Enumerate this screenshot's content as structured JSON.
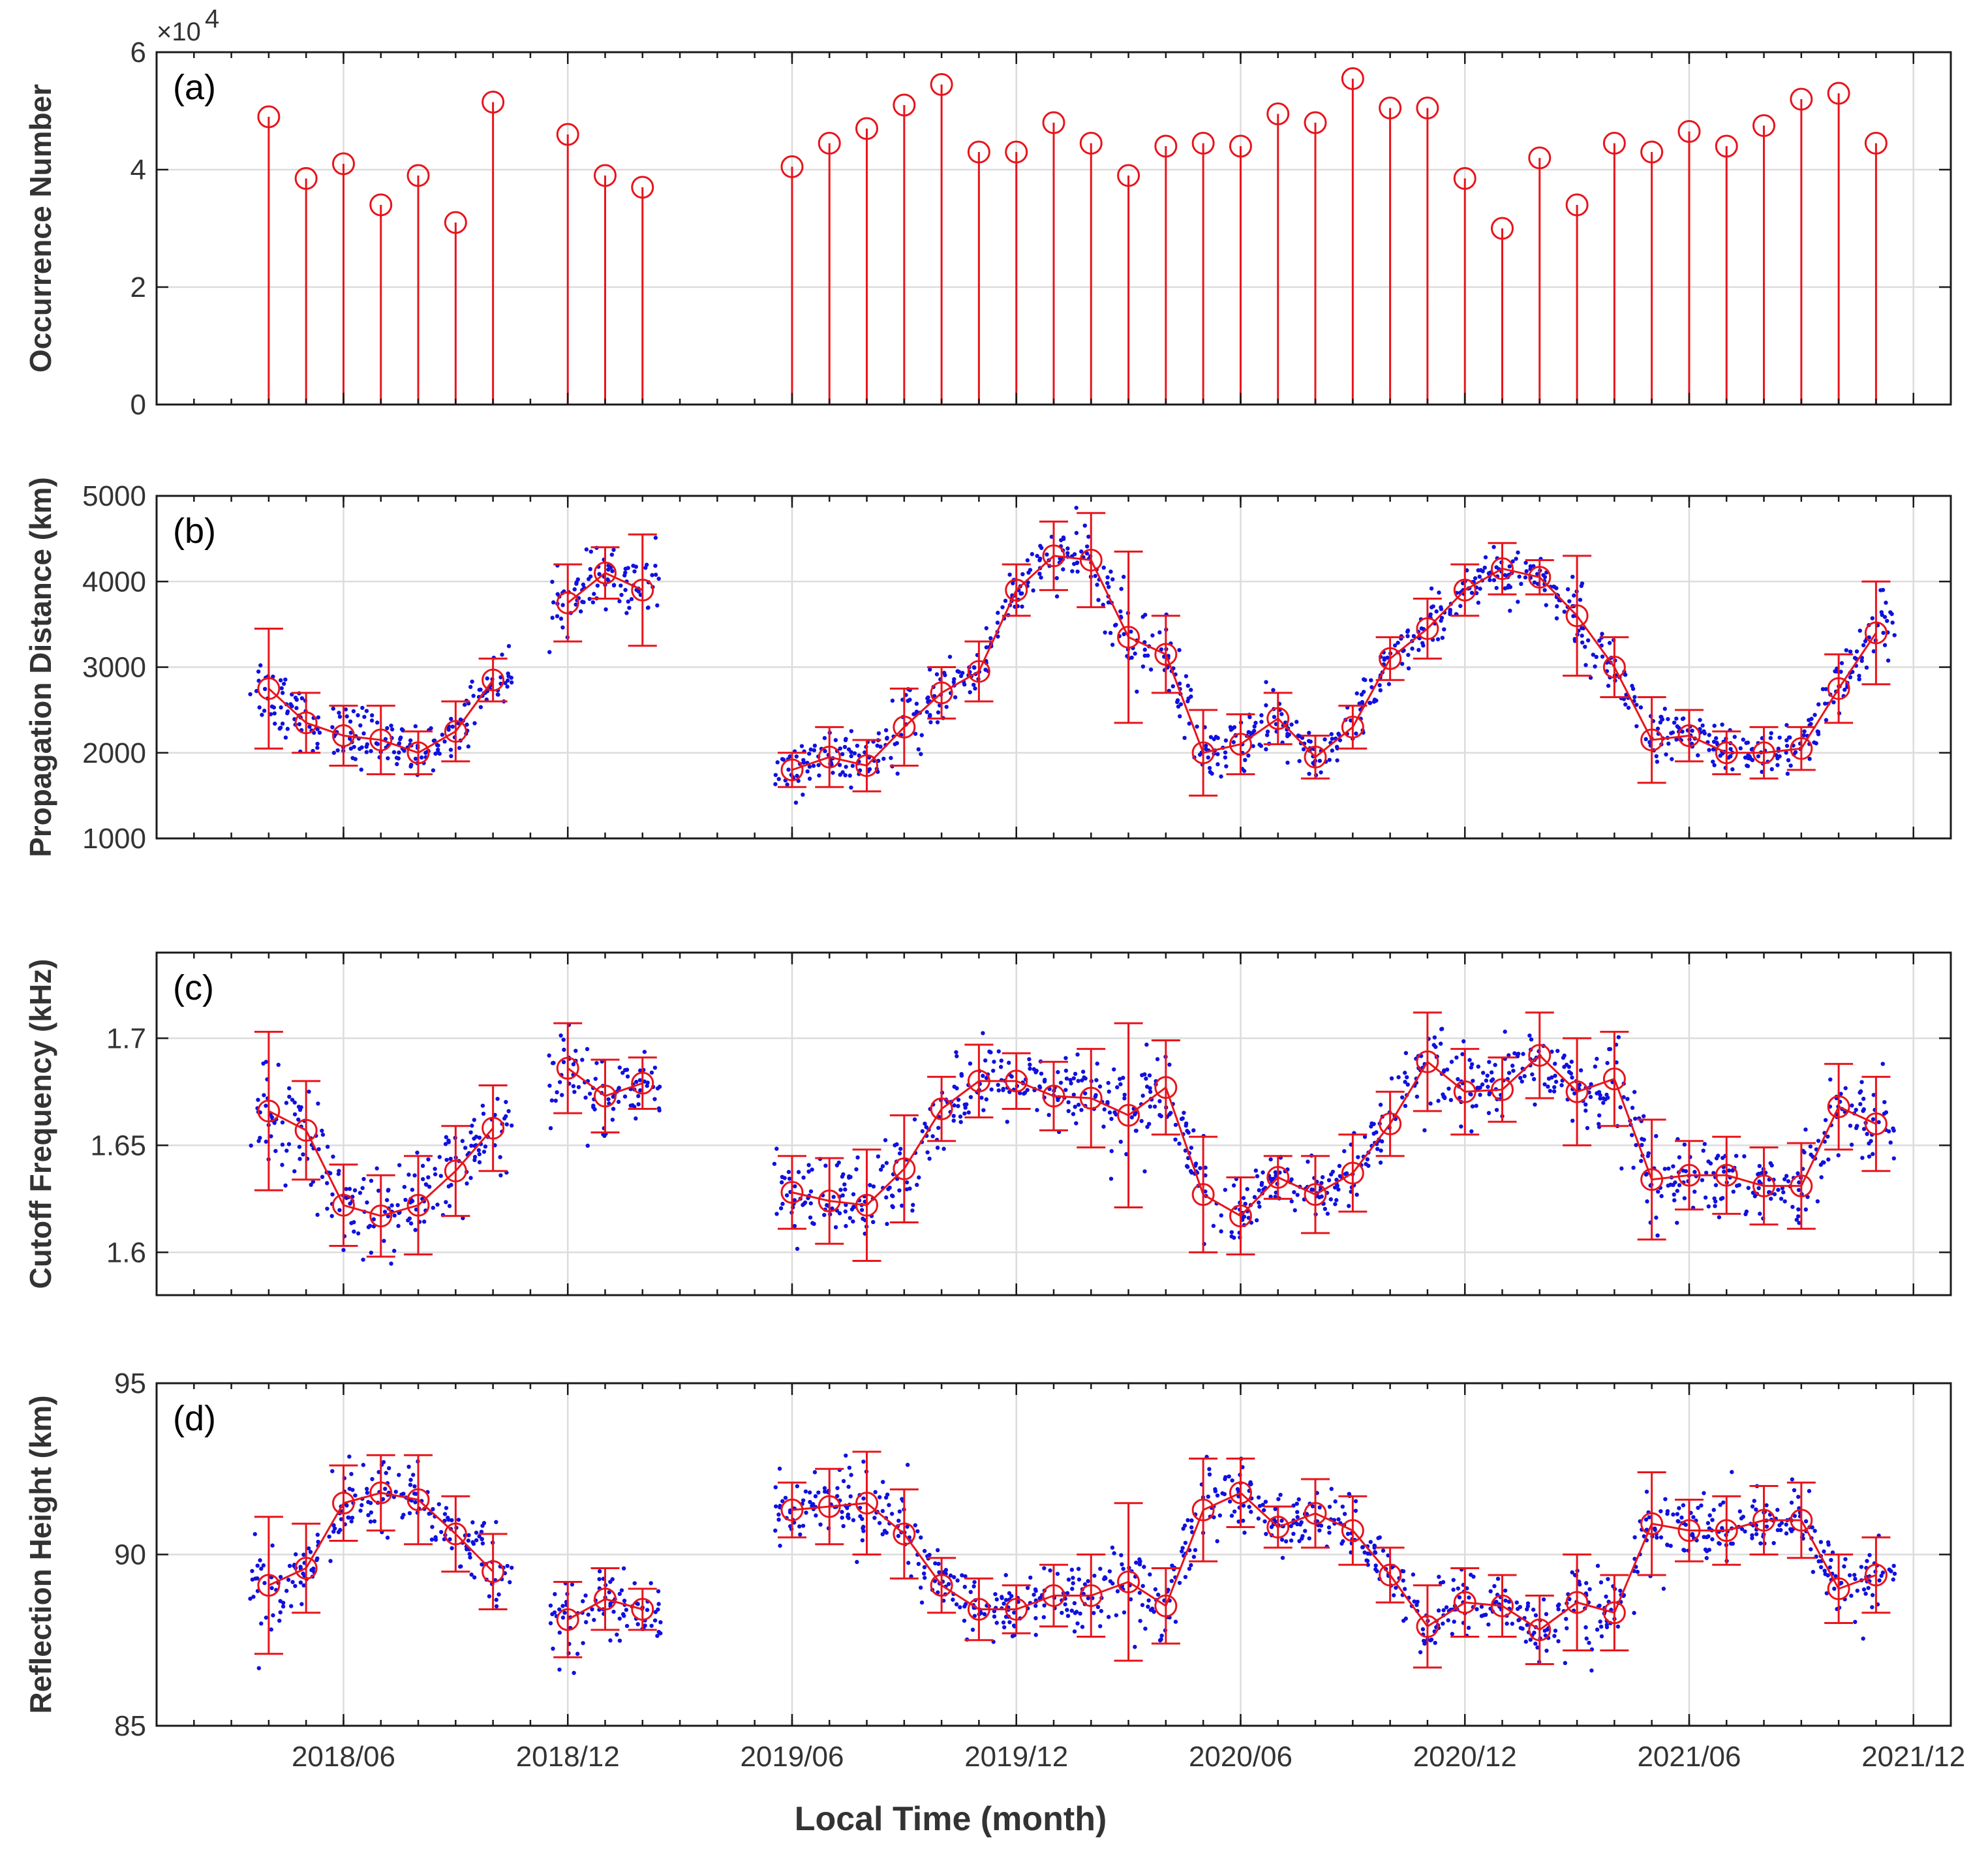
{
  "x_axis": {
    "title": "Local Time (month)",
    "range": [
      2018.0,
      2022.0
    ],
    "tick_values": [
      2018.4167,
      2018.9167,
      2019.4167,
      2019.9167,
      2020.4167,
      2020.9167,
      2021.4167,
      2021.9167
    ],
    "tick_labels": [
      "2018/06",
      "2018/12",
      "2019/06",
      "2019/12",
      "2020/06",
      "2020/12",
      "2021/06",
      "2021/12"
    ],
    "months": [
      2018.25,
      2018.3333,
      2018.4167,
      2018.5,
      2018.5833,
      2018.6667,
      2018.75,
      2018.9167,
      2019.0,
      2019.0833,
      2019.4167,
      2019.5,
      2019.5833,
      2019.6667,
      2019.75,
      2019.8333,
      2019.9167,
      2020.0,
      2020.0833,
      2020.1667,
      2020.25,
      2020.3333,
      2020.4167,
      2020.5,
      2020.5833,
      2020.6667,
      2020.75,
      2020.8333,
      2020.9167,
      2021.0,
      2021.0833,
      2021.1667,
      2021.25,
      2021.3333,
      2021.4167,
      2021.5,
      2021.5833,
      2021.6667,
      2021.75,
      2021.8333
    ]
  },
  "chart_data": [
    {
      "type": "stem",
      "panel_label": "(a)",
      "ylabel": "Occurrence Number",
      "ylim": [
        0,
        6
      ],
      "y_ticks": [
        0,
        2,
        4,
        6
      ],
      "y_tick_labels": [
        "0",
        "2",
        "4",
        "6"
      ],
      "y_multiplier": "×10",
      "y_multiplier_exp": "4",
      "values": [
        4.9,
        3.85,
        4.1,
        3.4,
        3.9,
        3.1,
        5.15,
        4.6,
        3.9,
        3.7,
        4.05,
        4.45,
        4.7,
        5.1,
        5.45,
        4.3,
        4.3,
        4.8,
        4.45,
        3.9,
        4.4,
        4.45,
        4.4,
        4.95,
        4.8,
        5.55,
        5.05,
        5.05,
        3.85,
        3.0,
        4.2,
        3.4,
        4.45,
        4.3,
        4.65,
        4.4,
        4.75,
        5.2,
        5.3,
        4.45
      ]
    },
    {
      "type": "scatter+errorbar",
      "panel_label": "(b)",
      "ylabel": "Propagation Distance (km)",
      "ylim": [
        1000,
        5000
      ],
      "y_ticks": [
        1000,
        2000,
        3000,
        4000,
        5000
      ],
      "y_tick_labels": [
        "1000",
        "2000",
        "3000",
        "4000",
        "5000"
      ],
      "means": [
        2750,
        2350,
        2200,
        2150,
        2000,
        2250,
        2850,
        3750,
        4100,
        3900,
        1800,
        1950,
        1850,
        2300,
        2700,
        2950,
        3900,
        4300,
        4250,
        3350,
        3150,
        2000,
        2100,
        2400,
        1950,
        2300,
        3100,
        3450,
        3900,
        4150,
        4050,
        3600,
        3000,
        2150,
        2200,
        2000,
        2000,
        2050,
        2750,
        3400
      ],
      "errors": [
        700,
        350,
        350,
        400,
        250,
        350,
        250,
        450,
        300,
        650,
        200,
        350,
        300,
        450,
        300,
        350,
        300,
        400,
        550,
        1000,
        450,
        500,
        350,
        300,
        250,
        250,
        250,
        350,
        300,
        300,
        200,
        700,
        350,
        500,
        300,
        250,
        300,
        250,
        400,
        600
      ],
      "scatter_spread": [
        400,
        300,
        300,
        300,
        250,
        300,
        250,
        300,
        300,
        400,
        250,
        300,
        300,
        350,
        300,
        300,
        300,
        300,
        350,
        450,
        350,
        400,
        300,
        300,
        250,
        250,
        250,
        300,
        250,
        300,
        250,
        350,
        300,
        350,
        250,
        250,
        250,
        250,
        300,
        400
      ]
    },
    {
      "type": "scatter+errorbar",
      "panel_label": "(c)",
      "ylabel": "Cutoff Frequency (kHz)",
      "ylim": [
        1.58,
        1.74
      ],
      "y_ticks": [
        1.6,
        1.65,
        1.7
      ],
      "y_tick_labels": [
        "1.6",
        "1.65",
        "1.7"
      ],
      "means": [
        1.666,
        1.657,
        1.622,
        1.617,
        1.622,
        1.638,
        1.658,
        1.686,
        1.673,
        1.679,
        1.628,
        1.624,
        1.622,
        1.639,
        1.667,
        1.68,
        1.68,
        1.673,
        1.672,
        1.664,
        1.677,
        1.627,
        1.617,
        1.635,
        1.627,
        1.637,
        1.66,
        1.689,
        1.675,
        1.676,
        1.692,
        1.675,
        1.681,
        1.634,
        1.636,
        1.636,
        1.631,
        1.631,
        1.668,
        1.66
      ],
      "errors": [
        0.037,
        0.023,
        0.019,
        0.019,
        0.023,
        0.021,
        0.02,
        0.021,
        0.017,
        0.012,
        0.017,
        0.02,
        0.026,
        0.025,
        0.015,
        0.017,
        0.013,
        0.016,
        0.023,
        0.043,
        0.022,
        0.027,
        0.018,
        0.01,
        0.018,
        0.018,
        0.015,
        0.023,
        0.02,
        0.015,
        0.02,
        0.025,
        0.022,
        0.028,
        0.016,
        0.018,
        0.018,
        0.02,
        0.02,
        0.022
      ],
      "scatter_spread": [
        0.025,
        0.02,
        0.018,
        0.018,
        0.02,
        0.018,
        0.018,
        0.018,
        0.016,
        0.014,
        0.016,
        0.018,
        0.02,
        0.02,
        0.015,
        0.015,
        0.014,
        0.015,
        0.02,
        0.025,
        0.018,
        0.02,
        0.015,
        0.012,
        0.015,
        0.015,
        0.015,
        0.018,
        0.016,
        0.015,
        0.018,
        0.02,
        0.018,
        0.02,
        0.015,
        0.015,
        0.015,
        0.016,
        0.016,
        0.018
      ]
    },
    {
      "type": "scatter+errorbar",
      "panel_label": "(d)",
      "ylabel": "Reflection Height (km)",
      "ylim": [
        85,
        95
      ],
      "y_ticks": [
        85,
        90,
        95
      ],
      "y_tick_labels": [
        "85",
        "90",
        "95"
      ],
      "means": [
        89.1,
        89.6,
        91.5,
        91.8,
        91.6,
        90.6,
        89.5,
        88.1,
        88.7,
        88.4,
        91.3,
        91.4,
        91.5,
        90.6,
        89.1,
        88.4,
        88.4,
        88.8,
        88.8,
        89.2,
        88.5,
        91.3,
        91.8,
        90.8,
        91.2,
        90.7,
        89.4,
        87.9,
        88.6,
        88.5,
        87.8,
        88.6,
        88.3,
        90.9,
        90.7,
        90.7,
        91.0,
        91.0,
        89.0,
        89.4
      ],
      "errors": [
        2.0,
        1.3,
        1.1,
        1.1,
        1.3,
        1.1,
        1.1,
        1.1,
        0.9,
        0.6,
        0.8,
        1.1,
        1.5,
        1.3,
        0.8,
        0.9,
        0.7,
        0.9,
        1.2,
        2.3,
        1.1,
        1.5,
        1.0,
        0.6,
        1.0,
        1.0,
        0.8,
        1.2,
        1.0,
        0.9,
        1.0,
        1.4,
        1.1,
        1.5,
        0.9,
        1.0,
        1.0,
        1.1,
        1.0,
        1.1
      ],
      "scatter_spread": [
        1.3,
        1.1,
        1.0,
        1.0,
        1.1,
        1.0,
        1.0,
        1.0,
        0.9,
        0.8,
        0.9,
        1.0,
        1.1,
        1.1,
        0.8,
        0.8,
        0.8,
        0.8,
        1.1,
        1.4,
        1.0,
        1.1,
        0.8,
        0.7,
        0.8,
        0.8,
        0.8,
        1.0,
        0.9,
        0.8,
        1.0,
        1.1,
        1.0,
        1.1,
        0.8,
        0.8,
        0.8,
        0.9,
        0.9,
        1.0
      ]
    }
  ],
  "colors": {
    "stem": "#e8141b",
    "mean_marker": "#e8141b",
    "errorbar": "#e8141b",
    "scatter": "#1010e0",
    "frame": "#1a1a1a",
    "grid": "#dcdcdc",
    "text": "#333333"
  }
}
